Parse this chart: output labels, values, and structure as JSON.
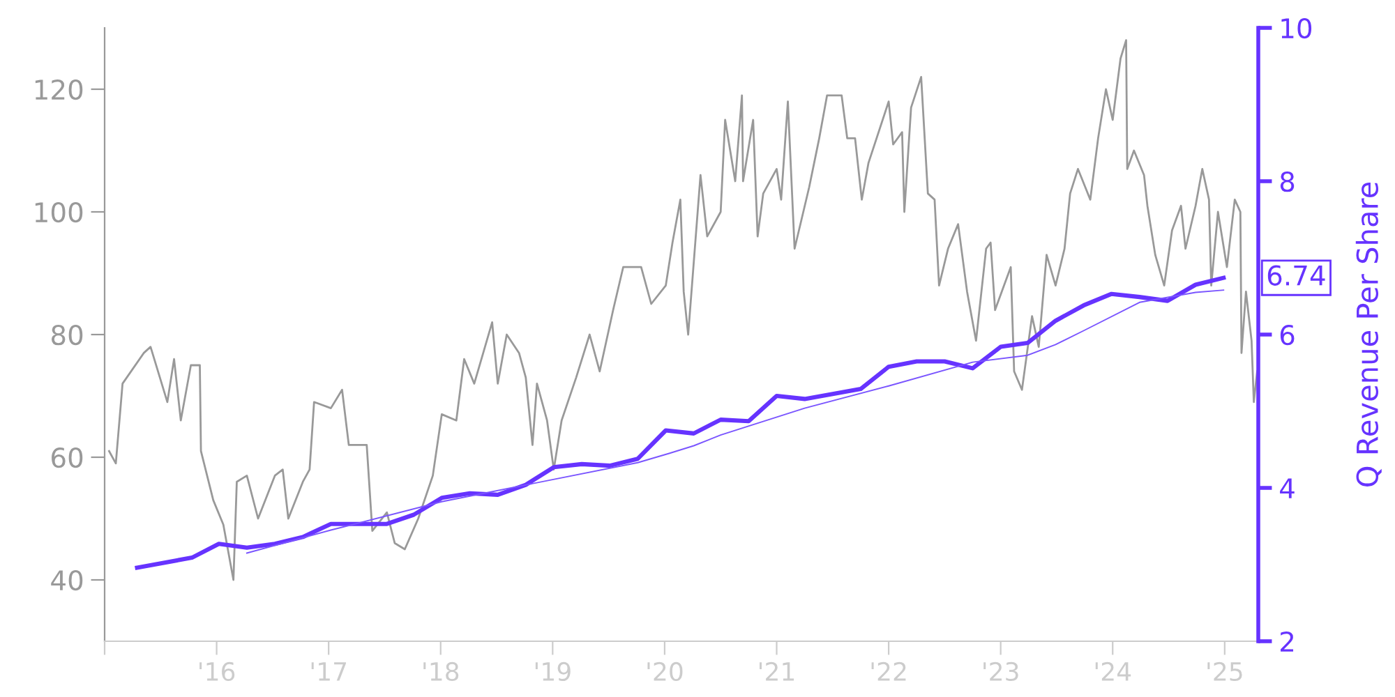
{
  "chart_data": {
    "type": "line",
    "y2label": "Q Revenue Per Share",
    "xlim": [
      2015,
      2025.3
    ],
    "xticks": [
      {
        "value": 2015,
        "label": null
      },
      {
        "value": 2016,
        "label": "'16"
      },
      {
        "value": 2017,
        "label": "'17"
      },
      {
        "value": 2018,
        "label": "'18"
      },
      {
        "value": 2019,
        "label": "'19"
      },
      {
        "value": 2020,
        "label": "'20"
      },
      {
        "value": 2021,
        "label": "'21"
      },
      {
        "value": 2022,
        "label": "'22"
      },
      {
        "value": 2023,
        "label": "'23"
      },
      {
        "value": 2024,
        "label": "'24"
      },
      {
        "value": 2025,
        "label": "'25"
      }
    ],
    "ylim": [
      30,
      130
    ],
    "yticks": [
      40,
      60,
      80,
      100,
      120
    ],
    "y2lim": [
      2,
      10
    ],
    "y2ticks": [
      2,
      4,
      6,
      8,
      10
    ],
    "series": [
      {
        "color": "#999999",
        "axis": "y",
        "x": [
          2015.04,
          2015.1,
          2015.16,
          2015.35,
          2015.41,
          2015.56,
          2015.62,
          2015.68,
          2015.77,
          2015.85,
          2015.86,
          2015.97,
          2016.06,
          2016.15,
          2016.18,
          2016.27,
          2016.37,
          2016.52,
          2016.59,
          2016.64,
          2016.77,
          2016.83,
          2016.87,
          2017.02,
          2017.12,
          2017.18,
          2017.34,
          2017.39,
          2017.52,
          2017.59,
          2017.68,
          2017.8,
          2017.93,
          2018.01,
          2018.14,
          2018.21,
          2018.3,
          2018.46,
          2018.51,
          2018.59,
          2018.7,
          2018.76,
          2018.82,
          2018.86,
          2018.95,
          2019.01,
          2019.08,
          2019.21,
          2019.33,
          2019.42,
          2019.54,
          2019.63,
          2019.79,
          2019.88,
          2020.01,
          2020.07,
          2020.14,
          2020.17,
          2020.21,
          2020.32,
          2020.38,
          2020.5,
          2020.54,
          2020.63,
          2020.69,
          2020.7,
          2020.79,
          2020.83,
          2020.88,
          2021.0,
          2021.04,
          2021.1,
          2021.16,
          2021.29,
          2021.38,
          2021.45,
          2021.58,
          2021.63,
          2021.7,
          2021.76,
          2021.82,
          2022.0,
          2022.04,
          2022.12,
          2022.14,
          2022.2,
          2022.29,
          2022.35,
          2022.41,
          2022.45,
          2022.53,
          2022.62,
          2022.7,
          2022.78,
          2022.87,
          2022.91,
          2022.95,
          2023.03,
          2023.09,
          2023.12,
          2023.19,
          2023.28,
          2023.34,
          2023.41,
          2023.49,
          2023.57,
          2023.62,
          2023.69,
          2023.8,
          2023.87,
          2023.94,
          2024.0,
          2024.07,
          2024.12,
          2024.13,
          2024.19,
          2024.28,
          2024.31,
          2024.38,
          2024.46,
          2024.53,
          2024.61,
          2024.65,
          2024.74,
          2024.8,
          2024.86,
          2024.88,
          2024.94,
          2025.02,
          2025.09,
          2025.14,
          2025.15,
          2025.19,
          2025.24,
          2025.26,
          2025.29
        ],
        "values": [
          61,
          59,
          72,
          77,
          78,
          69,
          76,
          66,
          75,
          75,
          61,
          53,
          49,
          40,
          56,
          57,
          50,
          57,
          58,
          50,
          56,
          58,
          69,
          68,
          71,
          62,
          62,
          48,
          51,
          46,
          45,
          50,
          57,
          67,
          66,
          76,
          72,
          82,
          72,
          80,
          77,
          73,
          62,
          72,
          66,
          58,
          66,
          73,
          80,
          74,
          84,
          91,
          91,
          85,
          88,
          95,
          102,
          87,
          80,
          106,
          96,
          100,
          115,
          105,
          119,
          105,
          115,
          96,
          103,
          107,
          102,
          118,
          94,
          104,
          112,
          119,
          119,
          112,
          112,
          102,
          108,
          118,
          111,
          113,
          100,
          117,
          122,
          103,
          102,
          88,
          94,
          98,
          87,
          79,
          94,
          95,
          84,
          88,
          91,
          74,
          71,
          83,
          78,
          93,
          88,
          94,
          103,
          107,
          102,
          112,
          120,
          115,
          125,
          128,
          107,
          110,
          106,
          101,
          93,
          88,
          97,
          101,
          94,
          101,
          107,
          102,
          88,
          100,
          91,
          102,
          100,
          77,
          87,
          79,
          69,
          74
        ]
      },
      {
        "color": "#6633ff",
        "axis": "y2",
        "x": [
          2015.29,
          2015.78,
          2016.02,
          2016.27,
          2016.52,
          2016.77,
          2017.02,
          2017.52,
          2017.76,
          2018.01,
          2018.26,
          2018.51,
          2018.76,
          2019.01,
          2019.26,
          2019.51,
          2019.76,
          2020.01,
          2020.26,
          2020.5,
          2020.75,
          2021.0,
          2021.25,
          2021.75,
          2022.0,
          2022.25,
          2022.5,
          2022.75,
          2023.0,
          2023.24,
          2023.49,
          2023.74,
          2023.99,
          2024.24,
          2024.49,
          2024.74,
          2024.99
        ],
        "values": [
          2.96,
          3.09,
          3.27,
          3.22,
          3.27,
          3.36,
          3.53,
          3.53,
          3.65,
          3.87,
          3.93,
          3.91,
          4.04,
          4.27,
          4.31,
          4.29,
          4.38,
          4.75,
          4.71,
          4.89,
          4.87,
          5.2,
          5.16,
          5.29,
          5.58,
          5.65,
          5.65,
          5.56,
          5.84,
          5.89,
          6.18,
          6.38,
          6.53,
          6.49,
          6.44,
          6.65,
          6.74
        ]
      },
      {
        "color": "#7a55ff",
        "axis": "y2",
        "line_style": "solid",
        "x": [
          2016.27,
          2017.02,
          2018.01,
          2019.76,
          2020.04,
          2020.26,
          2020.5,
          2021.25,
          2022.0,
          2022.75,
          2023.24,
          2023.49,
          2023.74,
          2024.24,
          2024.74,
          2024.99
        ],
        "values": [
          3.15,
          3.45,
          3.82,
          4.33,
          4.45,
          4.55,
          4.69,
          5.04,
          5.33,
          5.64,
          5.73,
          5.87,
          6.05,
          6.42,
          6.55,
          6.58
        ]
      }
    ],
    "annotations": [
      "6.74"
    ]
  }
}
